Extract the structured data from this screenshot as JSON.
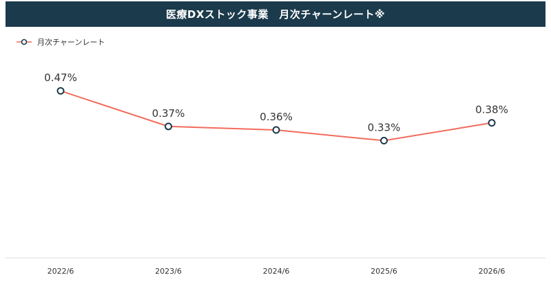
{
  "title": "医療DXストック事業　月次チャーンレート※",
  "colors": {
    "title_bg": "#1b3a4b",
    "line": "#f26b5b",
    "marker_stroke": "#1b3a4b",
    "axis": "#dddddd",
    "text": "#333333"
  },
  "chart_data": {
    "type": "line",
    "title": "医療DXストック事業　月次チャーンレート※",
    "categories": [
      "2022/6",
      "2023/6",
      "2024/6",
      "2025/6",
      "2026/6"
    ],
    "series": [
      {
        "name": "月次チャーンレート",
        "values": [
          0.47,
          0.37,
          0.36,
          0.33,
          0.38
        ],
        "labels": [
          "0.47%",
          "0.37%",
          "0.36%",
          "0.33%",
          "0.38%"
        ]
      }
    ],
    "xlabel": "",
    "ylabel": "",
    "ylim": [
      0,
      0.6
    ],
    "grid": false,
    "legend_position": "top-left"
  }
}
